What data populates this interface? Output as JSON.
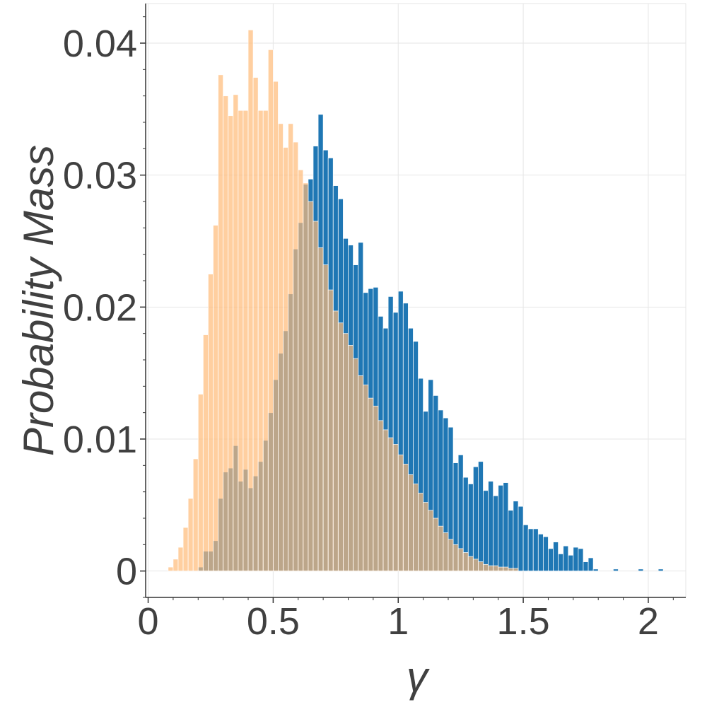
{
  "chart_data": {
    "type": "bar",
    "subtype": "overlaid-histogram",
    "xlabel": "γ",
    "ylabel": "Probability Mass",
    "xlim": [
      -0.01,
      2.15
    ],
    "ylim": [
      -0.002,
      0.043
    ],
    "x_ticks": [
      0,
      0.5,
      1,
      1.5,
      2
    ],
    "x_tick_labels": [
      "0",
      "0.5",
      "1",
      "1.5",
      "2"
    ],
    "y_ticks": [
      0,
      0.01,
      0.02,
      0.03,
      0.04
    ],
    "y_tick_labels": [
      "0",
      "0.01",
      "0.02",
      "0.03",
      "0.04"
    ],
    "grid": true,
    "bin_width": 0.02,
    "series": [
      {
        "color": "#1f77b4",
        "opacity": 1.0,
        "bins": [
          [
            0.2,
            0.0003
          ],
          [
            0.22,
            0.0015
          ],
          [
            0.24,
            0.0015
          ],
          [
            0.26,
            0.0023
          ],
          [
            0.28,
            0.0055
          ],
          [
            0.3,
            0.0075
          ],
          [
            0.32,
            0.0078
          ],
          [
            0.34,
            0.0095
          ],
          [
            0.36,
            0.0068
          ],
          [
            0.38,
            0.0077
          ],
          [
            0.4,
            0.0063
          ],
          [
            0.42,
            0.0072
          ],
          [
            0.44,
            0.0083
          ],
          [
            0.46,
            0.0099
          ],
          [
            0.48,
            0.012
          ],
          [
            0.5,
            0.0145
          ],
          [
            0.52,
            0.0165
          ],
          [
            0.54,
            0.0182
          ],
          [
            0.56,
            0.021
          ],
          [
            0.58,
            0.0244
          ],
          [
            0.6,
            0.0264
          ],
          [
            0.62,
            0.0293
          ],
          [
            0.64,
            0.0297
          ],
          [
            0.66,
            0.0322
          ],
          [
            0.68,
            0.0346
          ],
          [
            0.7,
            0.0319
          ],
          [
            0.72,
            0.0313
          ],
          [
            0.74,
            0.0292
          ],
          [
            0.76,
            0.0282
          ],
          [
            0.78,
            0.0252
          ],
          [
            0.8,
            0.0247
          ],
          [
            0.82,
            0.0232
          ],
          [
            0.84,
            0.0249
          ],
          [
            0.86,
            0.0211
          ],
          [
            0.88,
            0.0214
          ],
          [
            0.9,
            0.0215
          ],
          [
            0.92,
            0.0193
          ],
          [
            0.94,
            0.0184
          ],
          [
            0.96,
            0.0208
          ],
          [
            0.98,
            0.0196
          ],
          [
            1.0,
            0.0212
          ],
          [
            1.02,
            0.0203
          ],
          [
            1.04,
            0.0184
          ],
          [
            1.06,
            0.0174
          ],
          [
            1.08,
            0.0146
          ],
          [
            1.1,
            0.0121
          ],
          [
            1.12,
            0.0145
          ],
          [
            1.14,
            0.0133
          ],
          [
            1.16,
            0.0122
          ],
          [
            1.18,
            0.0116
          ],
          [
            1.2,
            0.0109
          ],
          [
            1.22,
            0.0082
          ],
          [
            1.24,
            0.0088
          ],
          [
            1.26,
            0.0071
          ],
          [
            1.28,
            0.0066
          ],
          [
            1.3,
            0.0079
          ],
          [
            1.32,
            0.0083
          ],
          [
            1.34,
            0.0061
          ],
          [
            1.36,
            0.0068
          ],
          [
            1.38,
            0.0057
          ],
          [
            1.4,
            0.0065
          ],
          [
            1.42,
            0.0067
          ],
          [
            1.44,
            0.0046
          ],
          [
            1.46,
            0.0053
          ],
          [
            1.48,
            0.0049
          ],
          [
            1.5,
            0.0035
          ],
          [
            1.52,
            0.0032
          ],
          [
            1.54,
            0.0032
          ],
          [
            1.56,
            0.0028
          ],
          [
            1.58,
            0.0026
          ],
          [
            1.6,
            0.0017
          ],
          [
            1.62,
            0.0022
          ],
          [
            1.64,
            0.0013
          ],
          [
            1.66,
            0.0019
          ],
          [
            1.68,
            0.0012
          ],
          [
            1.7,
            0.0018
          ],
          [
            1.72,
            0.0017
          ],
          [
            1.74,
            0.0007
          ],
          [
            1.76,
            0.001
          ],
          [
            1.78,
            0.00015
          ],
          [
            1.86,
            0.00015
          ],
          [
            1.96,
            0.00015
          ],
          [
            2.04,
            0.00015
          ]
        ]
      },
      {
        "color": "#ffbb78",
        "opacity": 0.7,
        "bins": [
          [
            0.08,
            0.0003
          ],
          [
            0.1,
            0.0009
          ],
          [
            0.12,
            0.0018
          ],
          [
            0.14,
            0.0033
          ],
          [
            0.16,
            0.0055
          ],
          [
            0.18,
            0.0085
          ],
          [
            0.2,
            0.0134
          ],
          [
            0.22,
            0.0179
          ],
          [
            0.24,
            0.0225
          ],
          [
            0.26,
            0.0262
          ],
          [
            0.28,
            0.0376
          ],
          [
            0.3,
            0.036
          ],
          [
            0.32,
            0.0345
          ],
          [
            0.34,
            0.0361
          ],
          [
            0.36,
            0.0349
          ],
          [
            0.38,
            0.0349
          ],
          [
            0.4,
            0.041
          ],
          [
            0.42,
            0.0374
          ],
          [
            0.44,
            0.0349
          ],
          [
            0.46,
            0.0349
          ],
          [
            0.48,
            0.0395
          ],
          [
            0.5,
            0.0371
          ],
          [
            0.52,
            0.0339
          ],
          [
            0.54,
            0.0321
          ],
          [
            0.56,
            0.0339
          ],
          [
            0.58,
            0.0325
          ],
          [
            0.6,
            0.0304
          ],
          [
            0.62,
            0.0294
          ],
          [
            0.64,
            0.028
          ],
          [
            0.66,
            0.0265
          ],
          [
            0.68,
            0.0245
          ],
          [
            0.7,
            0.0232
          ],
          [
            0.72,
            0.0213
          ],
          [
            0.74,
            0.0197
          ],
          [
            0.76,
            0.0188
          ],
          [
            0.78,
            0.018
          ],
          [
            0.8,
            0.0171
          ],
          [
            0.82,
            0.0161
          ],
          [
            0.84,
            0.0148
          ],
          [
            0.86,
            0.0141
          ],
          [
            0.88,
            0.0131
          ],
          [
            0.9,
            0.0125
          ],
          [
            0.92,
            0.0114
          ],
          [
            0.94,
            0.0107
          ],
          [
            0.96,
            0.0101
          ],
          [
            0.98,
            0.0096
          ],
          [
            1.0,
            0.0088
          ],
          [
            1.02,
            0.0081
          ],
          [
            1.04,
            0.0073
          ],
          [
            1.06,
            0.0066
          ],
          [
            1.08,
            0.0059
          ],
          [
            1.1,
            0.0052
          ],
          [
            1.12,
            0.0046
          ],
          [
            1.14,
            0.004
          ],
          [
            1.16,
            0.0034
          ],
          [
            1.18,
            0.0029
          ],
          [
            1.2,
            0.0024
          ],
          [
            1.22,
            0.002
          ],
          [
            1.24,
            0.0017
          ],
          [
            1.26,
            0.0014
          ],
          [
            1.28,
            0.0011
          ],
          [
            1.3,
            0.0009
          ],
          [
            1.32,
            0.0007
          ],
          [
            1.34,
            0.0005
          ],
          [
            1.36,
            0.0004
          ],
          [
            1.38,
            0.0004
          ],
          [
            1.4,
            0.0003
          ],
          [
            1.42,
            0.0003
          ],
          [
            1.44,
            0.0002
          ],
          [
            1.46,
            0.0002
          ]
        ]
      }
    ]
  }
}
